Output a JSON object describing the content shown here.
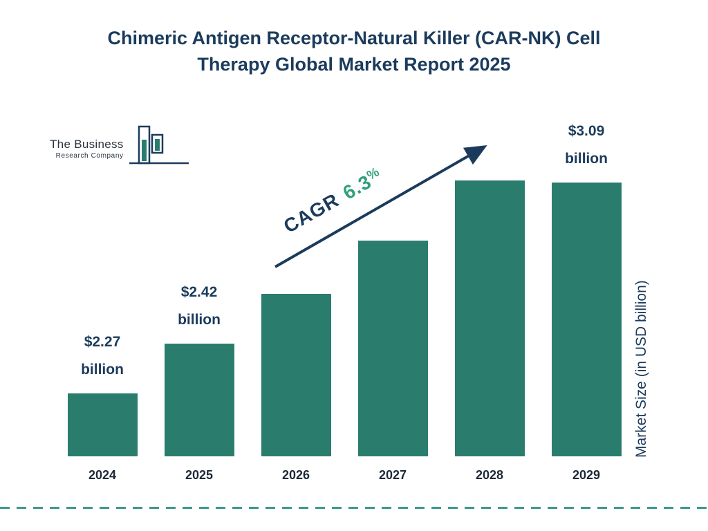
{
  "logo": {
    "line1": "The Business",
    "line2": "Research Company"
  },
  "chart_data": {
    "type": "bar",
    "title": "Chimeric Antigen Receptor-Natural Killer (CAR-NK) Cell Therapy Global Market Report 2025",
    "title_lines": [
      "Chimeric Antigen Receptor-Natural Killer (CAR-NK) Cell",
      "Therapy Global Market Report 2025"
    ],
    "ylabel": "Market Size (in USD billion)",
    "xlabel": "",
    "categories": [
      "2024",
      "2025",
      "2026",
      "2027",
      "2028",
      "2029"
    ],
    "values": [
      2.27,
      2.42,
      2.57,
      2.73,
      2.91,
      3.09
    ],
    "bars": [
      {
        "year": "2024",
        "value": 2.27,
        "label_amount": "$2.27",
        "label_unit": "billion"
      },
      {
        "year": "2025",
        "value": 2.42,
        "label_amount": "$2.42",
        "label_unit": "billion"
      },
      {
        "year": "2026",
        "value": 2.57
      },
      {
        "year": "2027",
        "value": 2.73
      },
      {
        "year": "2028",
        "value": 2.91
      },
      {
        "year": "2029",
        "value": 3.09,
        "label_amount": "$3.09",
        "label_unit": "billion"
      }
    ],
    "cagr": {
      "label": "CAGR",
      "value": "6.3%",
      "value_number": "6.3",
      "unit": "%"
    },
    "ylim_hint": [
      2.08,
      3.1
    ],
    "grid": false,
    "legend": false,
    "colors": {
      "bar": "#2a7d6d",
      "title": "#1b3b5c",
      "cagr_green": "#2f9e7c",
      "arrow": "#1b3b5c",
      "dashed_line": "#3a9a8c"
    }
  }
}
